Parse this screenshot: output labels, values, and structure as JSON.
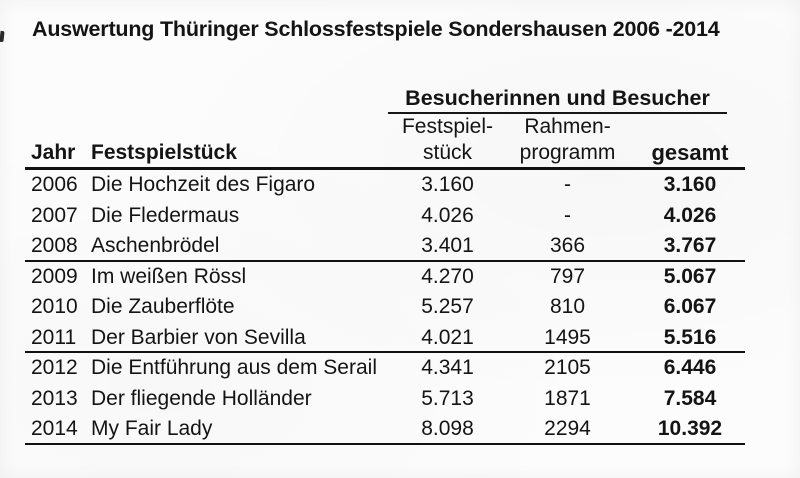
{
  "title": "Auswertung Thüringer Schlossfestspiele Sondershausen 2006 -2014",
  "colors": {
    "ink": "#141414",
    "rule": "#111111",
    "paper": "#fcfcfc"
  },
  "table": {
    "group_header": "Besucherinnen und Besucher",
    "columns": {
      "jahr": "Jahr",
      "stueck": "Festspielstück",
      "festspiel_line1": "Festspiel-",
      "festspiel_line2": "stück",
      "rahmen_line1": "Rahmen-",
      "rahmen_line2": "programm",
      "gesamt": "gesamt"
    },
    "rows": [
      {
        "jahr": "2006",
        "stueck": "Die Hochzeit des Figaro",
        "festspielstueck": "3.160",
        "rahmenprogramm": "-",
        "gesamt": "3.160"
      },
      {
        "jahr": "2007",
        "stueck": "Die Fledermaus",
        "festspielstueck": "4.026",
        "rahmenprogramm": "-",
        "gesamt": "4.026"
      },
      {
        "jahr": "2008",
        "stueck": "Aschenbrödel",
        "festspielstueck": "3.401",
        "rahmenprogramm": "366",
        "gesamt": "3.767"
      },
      {
        "jahr": "2009",
        "stueck": "Im weißen Rössl",
        "festspielstueck": "4.270",
        "rahmenprogramm": "797",
        "gesamt": "5.067"
      },
      {
        "jahr": "2010",
        "stueck": "Die Zauberflöte",
        "festspielstueck": "5.257",
        "rahmenprogramm": "810",
        "gesamt": "6.067"
      },
      {
        "jahr": "2011",
        "stueck": "Der Barbier von Sevilla",
        "festspielstueck": "4.021",
        "rahmenprogramm": "1495",
        "gesamt": "5.516"
      },
      {
        "jahr": "2012",
        "stueck": "Die Entführung aus dem Serail",
        "festspielstueck": "4.341",
        "rahmenprogramm": "2105",
        "gesamt": "6.446"
      },
      {
        "jahr": "2013",
        "stueck": "Der fliegende Holländer",
        "festspielstueck": "5.713",
        "rahmenprogramm": "1871",
        "gesamt": "7.584"
      },
      {
        "jahr": "2014",
        "stueck": "My Fair Lady",
        "festspielstueck": "8.098",
        "rahmenprogramm": "2294",
        "gesamt": "10.392"
      }
    ]
  }
}
